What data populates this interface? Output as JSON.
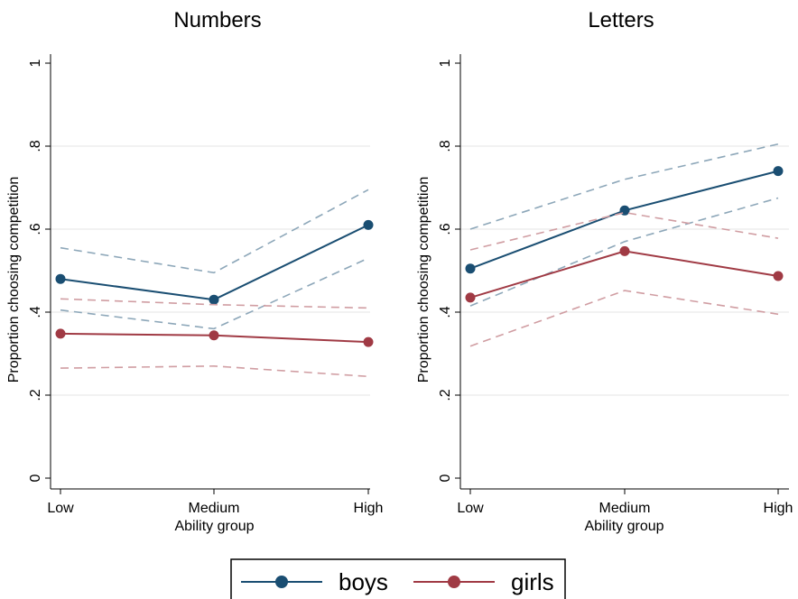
{
  "chart_data": [
    {
      "type": "line",
      "title": "Numbers",
      "xlabel": "Ability group",
      "ylabel": "Proportion choosing competition",
      "categories": [
        "Low",
        "Medium",
        "High"
      ],
      "ylim": [
        0,
        1
      ],
      "yticks": [
        0,
        0.2,
        0.4,
        0.6,
        0.8,
        1
      ],
      "ytick_labels": [
        "0",
        ".2",
        ".4",
        ".6",
        ".8",
        "1"
      ],
      "grid": true,
      "series": [
        {
          "name": "boys",
          "color": "#1a4e72",
          "values": [
            0.48,
            0.43,
            0.61
          ],
          "ci_lower": [
            0.405,
            0.36,
            0.53
          ],
          "ci_upper": [
            0.555,
            0.495,
            0.695
          ]
        },
        {
          "name": "girls",
          "color": "#a03a44",
          "values": [
            0.348,
            0.344,
            0.328
          ],
          "ci_lower": [
            0.265,
            0.27,
            0.245
          ],
          "ci_upper": [
            0.432,
            0.418,
            0.41
          ]
        }
      ]
    },
    {
      "type": "line",
      "title": "Letters",
      "xlabel": "Ability group",
      "ylabel": "Proportion choosing competition",
      "categories": [
        "Low",
        "Medium",
        "High"
      ],
      "ylim": [
        0,
        1
      ],
      "yticks": [
        0,
        0.2,
        0.4,
        0.6,
        0.8,
        1
      ],
      "ytick_labels": [
        "0",
        ".2",
        ".4",
        ".6",
        ".8",
        "1"
      ],
      "grid": true,
      "series": [
        {
          "name": "boys",
          "color": "#1a4e72",
          "values": [
            0.505,
            0.645,
            0.74
          ],
          "ci_lower": [
            0.415,
            0.57,
            0.675
          ],
          "ci_upper": [
            0.6,
            0.72,
            0.805
          ]
        },
        {
          "name": "girls",
          "color": "#a03a44",
          "values": [
            0.435,
            0.547,
            0.487
          ],
          "ci_lower": [
            0.318,
            0.452,
            0.395
          ],
          "ci_upper": [
            0.55,
            0.64,
            0.578
          ]
        }
      ]
    }
  ],
  "legend": {
    "placement": "bottom",
    "items": [
      {
        "label": "boys",
        "color": "#1a4e72"
      },
      {
        "label": "girls",
        "color": "#a03a44"
      }
    ]
  }
}
